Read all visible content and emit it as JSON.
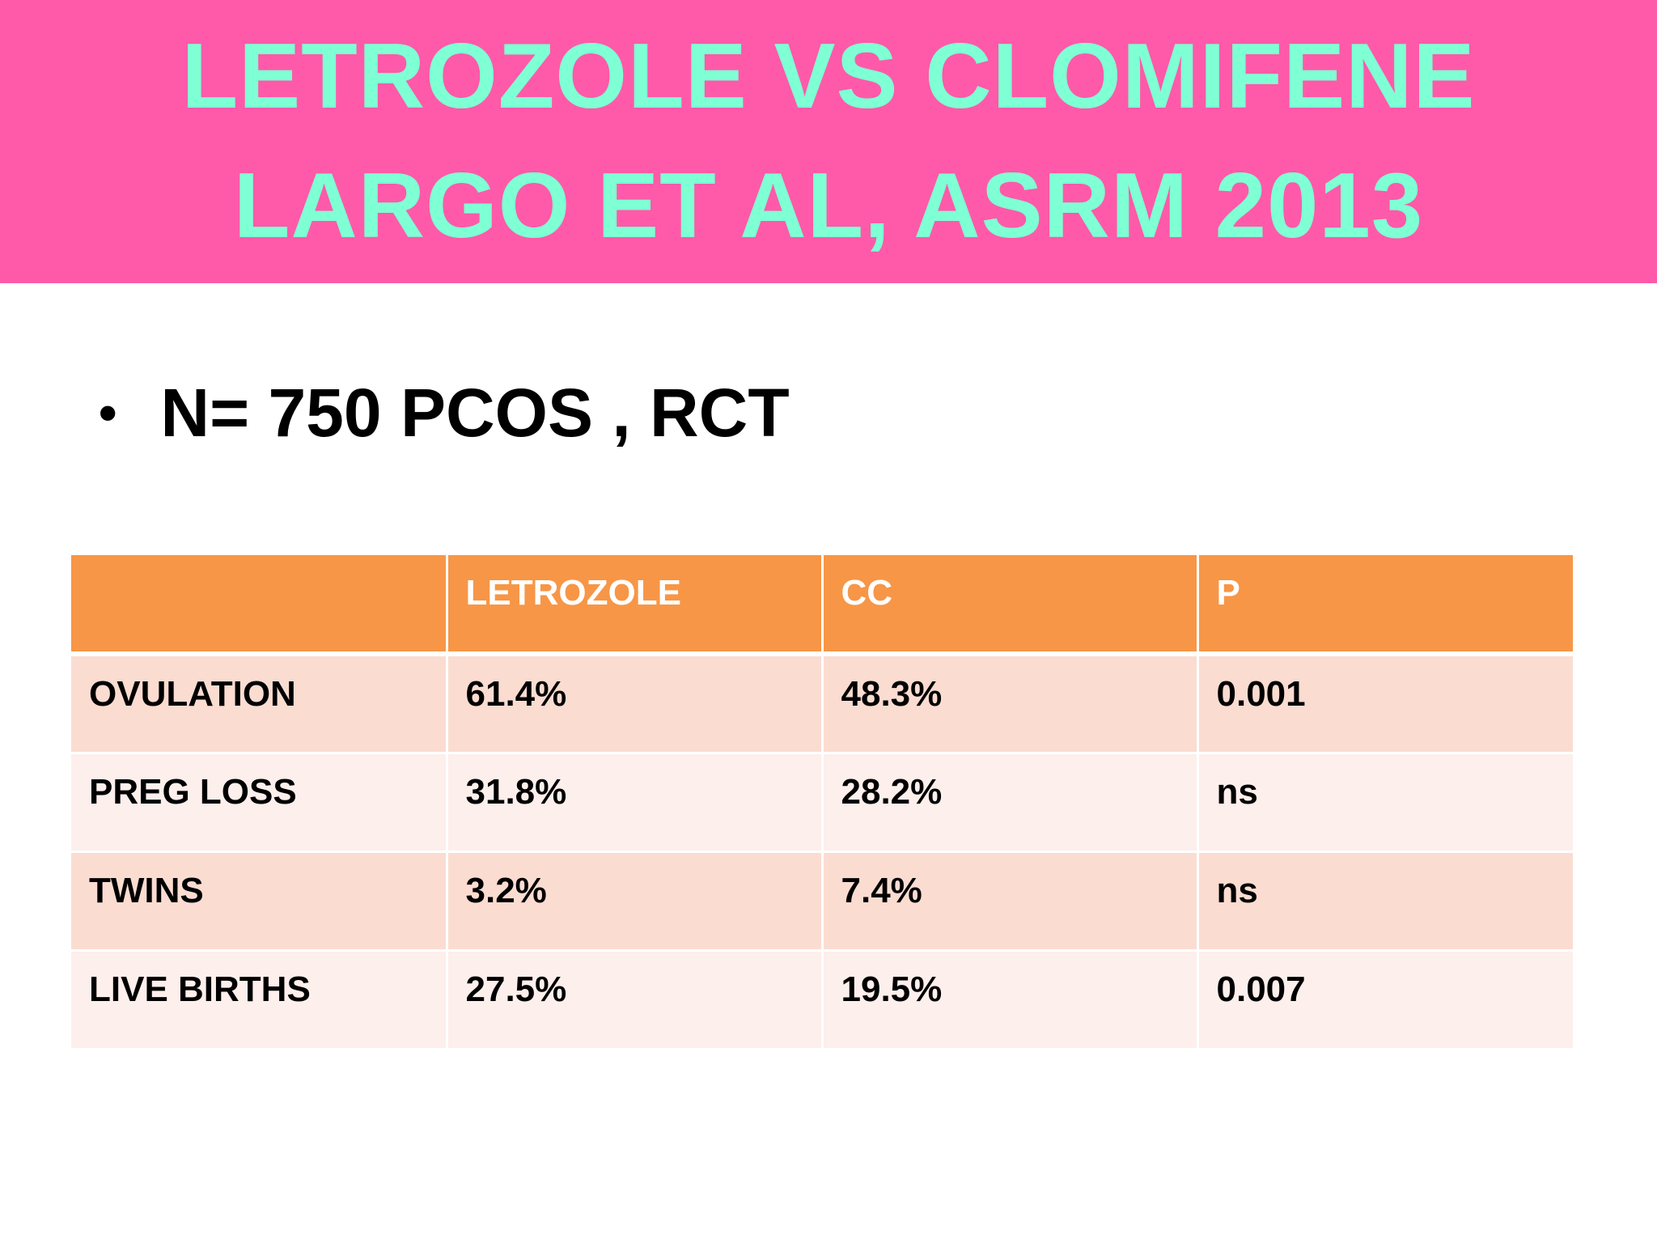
{
  "title": {
    "line1": "LETROZOLE VS CLOMIFENE",
    "line2": "LARGO ET AL, ASRM 2013"
  },
  "bullet": {
    "symbol": "•",
    "text": "N= 750 PCOS , RCT"
  },
  "table": {
    "headers": [
      "",
      "LETROZOLE",
      "CC",
      "P"
    ],
    "rows": [
      [
        "OVULATION",
        "61.4%",
        "48.3%",
        "0.001"
      ],
      [
        "PREG LOSS",
        "31.8%",
        "28.2%",
        "ns"
      ],
      [
        "TWINS",
        "3.2%",
        "7.4%",
        "ns"
      ],
      [
        "LIVE BIRTHS",
        "27.5%",
        "19.5%",
        "0.007"
      ]
    ]
  },
  "colors": {
    "title_background": "#ff5aa9",
    "title_text": "#7fffd4",
    "table_header": "#f79646",
    "row_odd": "#fbdcd1",
    "row_even": "#fdefec"
  }
}
